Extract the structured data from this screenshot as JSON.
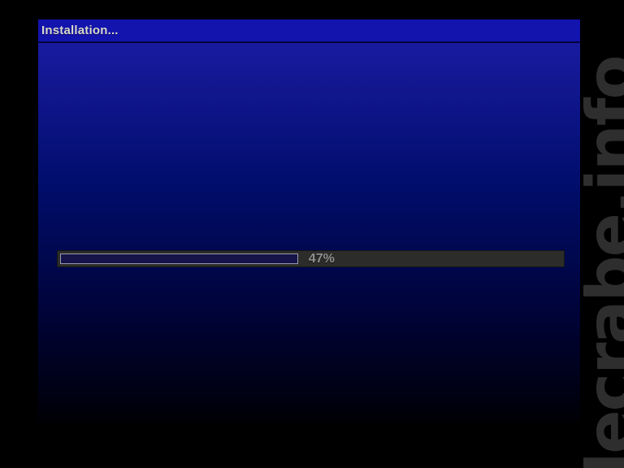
{
  "window": {
    "title": "Installation..."
  },
  "progress": {
    "percent": 47,
    "label": "47%"
  },
  "watermark": {
    "text": "lecrabe.info"
  },
  "colors": {
    "titlebar_blue": "#1313ae",
    "screen_blue_top": "#1d1da8",
    "screen_blue_bottom": "#000005",
    "title_text": "#d8d8cc",
    "progress_track": "#2c2c2a",
    "progress_fill": "#14144a",
    "progress_text": "#8e8e8e",
    "watermark_gray": "#2e2e2e"
  }
}
